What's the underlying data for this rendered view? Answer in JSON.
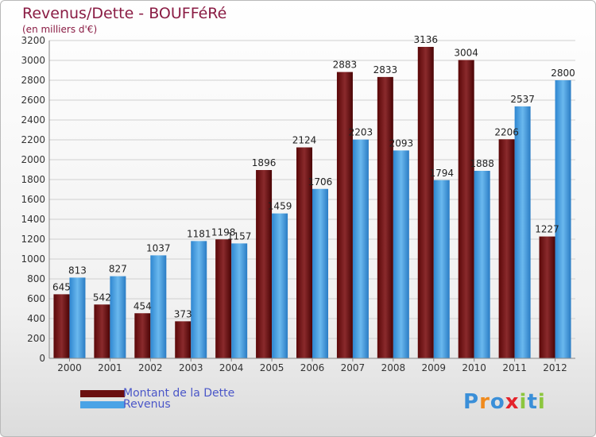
{
  "title": "Revenus/Dette - BOUFFéRé",
  "subtitle": "(en milliers d'€)",
  "brand": {
    "text": "Proxiti",
    "letters": [
      "P",
      "r",
      "o",
      "x",
      "i",
      "t",
      "i"
    ],
    "colors": [
      "#3a8fd8",
      "#f08a1c",
      "#3a8fd8",
      "#e4232b",
      "#8cc63e",
      "#3a8fd8",
      "#8cc63e"
    ]
  },
  "legend": {
    "items": [
      {
        "label": "Montant de la Dette",
        "color": "#6b0e10"
      },
      {
        "label": "Revenus",
        "color": "#4aa3e6"
      }
    ]
  },
  "chart_data": {
    "type": "bar",
    "title": "Revenus/Dette - BOUFFéRé",
    "subtitle": "(en milliers d'€)",
    "categories": [
      "2000",
      "2001",
      "2002",
      "2003",
      "2004",
      "2005",
      "2006",
      "2007",
      "2008",
      "2009",
      "2010",
      "2011",
      "2012"
    ],
    "series": [
      {
        "name": "Montant de la Dette",
        "color": "#6b0e10",
        "values": [
          645,
          542,
          454,
          373,
          1198,
          1896,
          2124,
          2883,
          2833,
          3136,
          3004,
          2206,
          1227
        ]
      },
      {
        "name": "Revenus",
        "color": "#4aa3e6",
        "values": [
          813,
          827,
          1037,
          1181,
          1157,
          1459,
          1706,
          2203,
          2093,
          1794,
          1888,
          2537,
          2800
        ]
      }
    ],
    "yticks": [
      "0",
      "200",
      "400",
      "600",
      "800",
      "1000",
      "1200",
      "1400",
      "1600",
      "1800",
      "2000",
      "2200",
      "2400",
      "2600",
      "2800",
      "3000",
      "3200"
    ],
    "ylim": [
      0,
      3200
    ],
    "grid": true,
    "legend_position": "bottom-left"
  }
}
